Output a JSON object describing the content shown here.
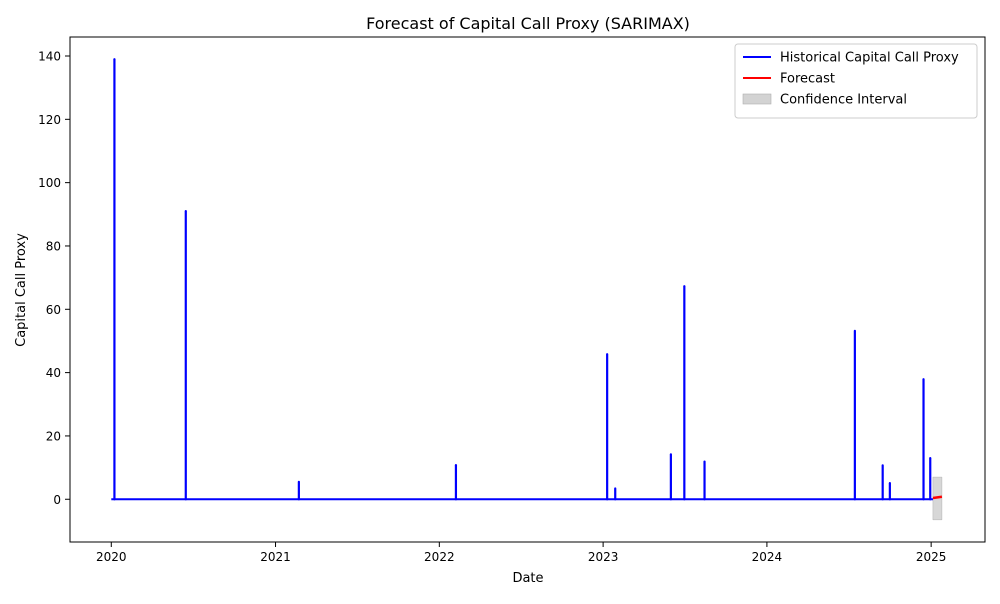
{
  "chart_data": {
    "type": "line",
    "title": "Forecast of Capital Call Proxy (SARIMAX)",
    "xlabel": "Date",
    "ylabel": "Capital Call Proxy",
    "xlim": [
      "2019-10-01",
      "2025-05-01"
    ],
    "ylim": [
      -13.5,
      146
    ],
    "x_ticks": [
      {
        "label": "2020",
        "date": "2020-01-01"
      },
      {
        "label": "2021",
        "date": "2021-01-01"
      },
      {
        "label": "2022",
        "date": "2022-01-01"
      },
      {
        "label": "2023",
        "date": "2023-01-01"
      },
      {
        "label": "2024",
        "date": "2024-01-01"
      },
      {
        "label": "2025",
        "date": "2025-01-01"
      }
    ],
    "y_ticks": [
      0,
      20,
      40,
      60,
      80,
      100,
      120,
      140
    ],
    "grid": false,
    "legend_position": "top-right",
    "colors": {
      "historical": "#0000ff",
      "forecast": "#ff0000",
      "confidence": "#d3d3d3"
    },
    "series": [
      {
        "name": "Historical Capital Call Proxy",
        "kind": "line",
        "baseline": 0,
        "spikes": [
          {
            "date": "2020-01-08",
            "value": 139
          },
          {
            "date": "2020-06-15",
            "value": 91
          },
          {
            "date": "2021-02-22",
            "value": 5.5
          },
          {
            "date": "2022-02-07",
            "value": 10.8
          },
          {
            "date": "2023-01-10",
            "value": 45.8
          },
          {
            "date": "2023-01-28",
            "value": 3.4
          },
          {
            "date": "2023-06-01",
            "value": 14.2
          },
          {
            "date": "2023-07-01",
            "value": 67.3
          },
          {
            "date": "2023-08-15",
            "value": 11.9
          },
          {
            "date": "2024-07-15",
            "value": 53.2
          },
          {
            "date": "2024-09-15",
            "value": 10.7
          },
          {
            "date": "2024-10-01",
            "value": 5.1
          },
          {
            "date": "2024-12-15",
            "value": 37.9
          },
          {
            "date": "2024-12-30",
            "value": 13
          }
        ],
        "x_start": "2020-01-01",
        "x_end": "2025-01-05"
      },
      {
        "name": "Forecast",
        "kind": "line",
        "x": [
          "2025-01-05",
          "2025-01-25"
        ],
        "y": [
          0.4,
          0.8
        ]
      },
      {
        "name": "Confidence Interval",
        "kind": "band",
        "x": [
          "2025-01-05",
          "2025-01-25"
        ],
        "lower": [
          -6.5,
          -6.5
        ],
        "upper": [
          7,
          7
        ]
      }
    ]
  }
}
